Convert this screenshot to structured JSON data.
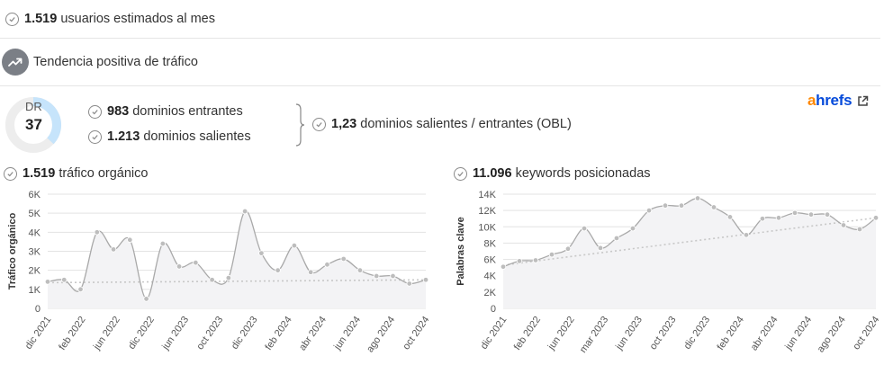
{
  "summary": {
    "users_value": "1.519",
    "users_label": " usuarios estimados al mes",
    "trend_label": "Tendencia positiva de tráfico"
  },
  "dr": {
    "label": "DR",
    "value": "37",
    "score": 37
  },
  "links": {
    "inbound_value": "983",
    "inbound_label": " dominios entrantes",
    "outbound_value": "1.213",
    "outbound_label": " dominios salientes",
    "obl_value": "1,23",
    "obl_label": " dominios salientes / entrantes (OBL)"
  },
  "brand": {
    "a": "a",
    "rest": "hrefs",
    "icon": "external-link-icon"
  },
  "colors": {
    "line": "#a9a9a9",
    "marker": "#bdbdbd",
    "area": "#f3f3f5",
    "trend": "#c8c8c8",
    "ring": "#c6e4fb",
    "ring_bg": "#ededed"
  },
  "chart_data": [
    {
      "type": "area",
      "header_value": "1.519",
      "header_label": " tráfico orgánico",
      "ylabel": "Tráfico orgánico",
      "ylim": [
        0,
        6000
      ],
      "yticks": [
        0,
        1000,
        2000,
        3000,
        4000,
        5000,
        6000
      ],
      "ytick_labels": [
        "0",
        "1K",
        "2K",
        "3K",
        "4K",
        "5K",
        "6K"
      ],
      "xtick_labels": [
        "dic 2021",
        "feb 2022",
        "jun 2022",
        "dic 2022",
        "jun 2023",
        "oct 2023",
        "dic 2023",
        "feb 2024",
        "abr 2024",
        "jun 2024",
        "ago 2024",
        "oct 2024"
      ],
      "values": [
        1400,
        1500,
        1000,
        4000,
        3100,
        3600,
        500,
        3400,
        2200,
        2400,
        1500,
        1600,
        5100,
        2900,
        2000,
        3300,
        1900,
        2300,
        2600,
        2000,
        1700,
        1700,
        1300,
        1500
      ],
      "trend": [
        1350,
        1500
      ],
      "grid": true
    },
    {
      "type": "area",
      "header_value": "11.096",
      "header_label": " keywords posicionadas",
      "ylabel": "Palabras clave",
      "ylim": [
        0,
        14000
      ],
      "yticks": [
        0,
        2000,
        4000,
        6000,
        8000,
        10000,
        12000,
        14000
      ],
      "ytick_labels": [
        "0",
        "2K",
        "4K",
        "6K",
        "8K",
        "10K",
        "12K",
        "14K"
      ],
      "xtick_labels": [
        "dic 2021",
        "feb 2022",
        "jun 2022",
        "mar 2023",
        "jun 2023",
        "oct 2023",
        "dic 2023",
        "feb 2024",
        "abr 2024",
        "jun 2024",
        "ago 2024",
        "oct 2024"
      ],
      "values": [
        5100,
        5800,
        5900,
        6600,
        7300,
        9800,
        7400,
        8600,
        9800,
        12000,
        12600,
        12600,
        13500,
        12400,
        11200,
        9000,
        11000,
        11100,
        11700,
        11500,
        11500,
        10200,
        9700,
        11100
      ],
      "trend": [
        5300,
        11100
      ],
      "grid": true
    }
  ]
}
